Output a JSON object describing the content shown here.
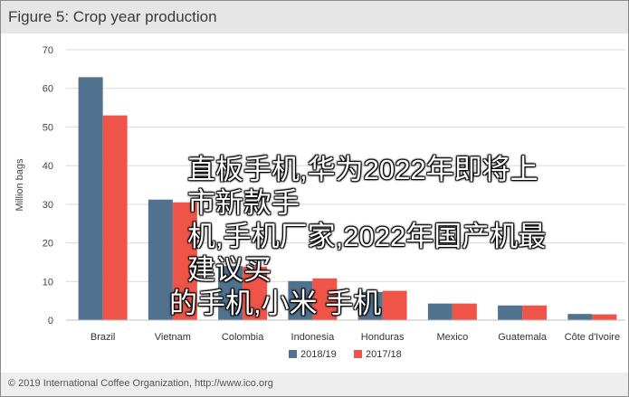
{
  "header": {
    "title": "Figure 5: Crop year production"
  },
  "footer": {
    "copyright": "© 2019 International Coffee Organization, http://www.ico.org"
  },
  "overlay": {
    "line1": "直板手机,华为2022年即将上市新款手",
    "line2": "机,手机厂家,2022年国产机最建议买",
    "line3": "的手机,小米 手机"
  },
  "colors": {
    "series_a": "#50728f",
    "series_b": "#ee5548",
    "grid": "#d9d9d9"
  },
  "chart_data": {
    "type": "bar",
    "ylabel": "Million bags",
    "ylim": [
      0,
      70
    ],
    "yticks": [
      0,
      10,
      20,
      30,
      40,
      50,
      60,
      70
    ],
    "categories": [
      "Brazil",
      "Vietnam",
      "Colombia",
      "Indonesia",
      "Honduras",
      "Mexico",
      "Guatemala",
      "Côte d'Ivoire"
    ],
    "series": [
      {
        "name": "2018/19",
        "values": [
          62.9,
          31.2,
          14.0,
          10.1,
          7.3,
          4.3,
          3.8,
          1.6
        ]
      },
      {
        "name": "2017/18",
        "values": [
          53.0,
          30.5,
          13.8,
          10.8,
          7.6,
          4.3,
          3.8,
          1.5
        ]
      }
    ],
    "legend": "bottom"
  }
}
